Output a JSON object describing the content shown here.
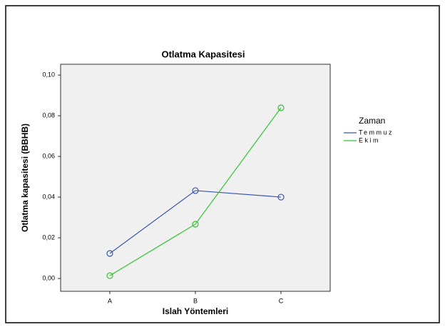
{
  "chart_data": {
    "type": "line",
    "title": "Otlatma Kapasitesi",
    "x_label": "Islah Yöntemleri",
    "y_label": "Otlatma kapasitesi (BBHB)",
    "categories": [
      "A",
      "B",
      "C"
    ],
    "series": [
      {
        "name": "Temmuz",
        "color": "#3a58b0",
        "values": [
          0.0123,
          0.0432,
          0.04
        ]
      },
      {
        "name": "Ekim",
        "color": "#33c233",
        "values": [
          0.0014,
          0.0267,
          0.0839
        ]
      }
    ],
    "ylim": [
      -0.0063,
      0.1053
    ],
    "yticks": [
      {
        "value": 0,
        "label": "0,00"
      },
      {
        "value": 0.02,
        "label": "0,02"
      },
      {
        "value": 0.04,
        "label": "0,04"
      },
      {
        "value": 0.06,
        "label": "0,06"
      },
      {
        "value": 0.08,
        "label": "0,08"
      },
      {
        "value": 0.1,
        "label": "0,10"
      }
    ],
    "legend_title": "Zaman",
    "legend": "right",
    "grid": false
  }
}
